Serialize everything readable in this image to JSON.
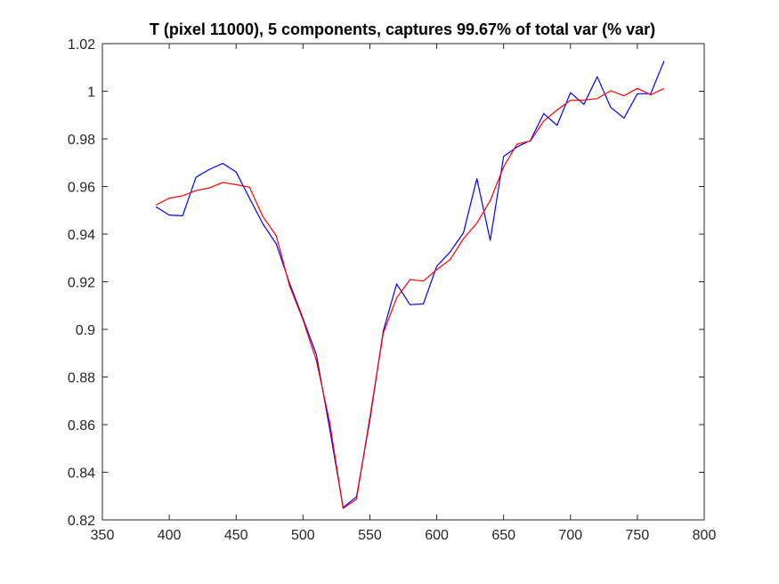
{
  "chart_data": {
    "type": "line",
    "title": "T (pixel 11000), 5 components, captures 99.67% of total var (% var)",
    "xlabel": "",
    "ylabel": "",
    "xlim": [
      350,
      800
    ],
    "ylim": [
      0.82,
      1.02
    ],
    "xticks": [
      350,
      400,
      450,
      500,
      550,
      600,
      650,
      700,
      750,
      800
    ],
    "xtick_labels": [
      "350",
      "400",
      "450",
      "500",
      "550",
      "600",
      "650",
      "700",
      "750",
      "800"
    ],
    "yticks": [
      0.82,
      0.84,
      0.86,
      0.88,
      0.9,
      0.92,
      0.94,
      0.96,
      0.98,
      1.0,
      1.02
    ],
    "ytick_labels": [
      "0.82",
      "0.84",
      "0.86",
      "0.88",
      "0.9",
      "0.92",
      "0.94",
      "0.96",
      "0.98",
      "1",
      "1.02"
    ],
    "grid": false,
    "legend": "none",
    "x": [
      390,
      400,
      410,
      420,
      430,
      440,
      450,
      460,
      470,
      480,
      490,
      500,
      510,
      520,
      530,
      540,
      550,
      560,
      570,
      580,
      590,
      600,
      610,
      620,
      630,
      640,
      650,
      660,
      670,
      680,
      690,
      700,
      710,
      720,
      730,
      740,
      750,
      760,
      770
    ],
    "series": [
      {
        "color": "#0000ff",
        "values": [
          0.9515,
          0.948,
          0.9477,
          0.9639,
          0.9672,
          0.9697,
          0.9661,
          0.9551,
          0.9443,
          0.9359,
          0.9193,
          0.9046,
          0.8894,
          0.8581,
          0.8252,
          0.8297,
          0.8618,
          0.8993,
          0.9191,
          0.9104,
          0.9107,
          0.9265,
          0.9325,
          0.9406,
          0.9633,
          0.9374,
          0.9726,
          0.9766,
          0.9793,
          0.9906,
          0.9857,
          0.9994,
          0.9945,
          1.0061,
          0.9933,
          0.9887,
          0.9989,
          0.999,
          1.0127
        ]
      },
      {
        "color": "#ff0000",
        "values": [
          0.9522,
          0.9551,
          0.9561,
          0.9583,
          0.9594,
          0.9617,
          0.9608,
          0.9597,
          0.9474,
          0.9393,
          0.9182,
          0.904,
          0.8869,
          0.8609,
          0.8248,
          0.8287,
          0.8631,
          0.8984,
          0.9132,
          0.9209,
          0.9203,
          0.9251,
          0.9293,
          0.9381,
          0.9446,
          0.9541,
          0.9682,
          0.9778,
          0.9791,
          0.9875,
          0.9921,
          0.9962,
          0.9963,
          0.9969,
          1.0002,
          0.9981,
          1.0012,
          0.9985,
          1.0012
        ]
      }
    ]
  }
}
